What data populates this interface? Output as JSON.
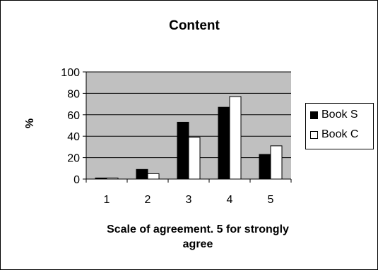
{
  "chart_data": {
    "type": "bar",
    "title": "Content",
    "xlabel": "Scale of agreement. 5 for strongly agree",
    "ylabel": "%",
    "categories": [
      "1",
      "2",
      "3",
      "4",
      "5"
    ],
    "ylim": [
      0,
      100
    ],
    "yticks": [
      "0",
      "20",
      "40",
      "60",
      "80",
      "100"
    ],
    "grid": true,
    "legend_position": "right",
    "plot_background": "#c0c0c0",
    "series": [
      {
        "name": "Book S",
        "color": "#000000",
        "values": [
          1,
          9,
          53,
          67,
          23
        ]
      },
      {
        "name": "Book C",
        "color": "#ffffff",
        "values": [
          1,
          5,
          39,
          77,
          31
        ]
      }
    ]
  }
}
